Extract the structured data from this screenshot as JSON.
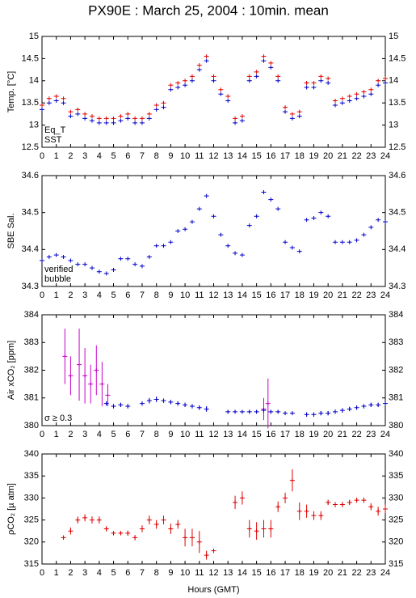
{
  "chart_data": [
    {
      "type": "scatter",
      "title": "PX90E : March 25, 2004 : 10min. mean",
      "y_label": "Temp. [°C]",
      "xlim": [
        0,
        24
      ],
      "xticks": [
        0,
        1,
        2,
        3,
        4,
        5,
        6,
        7,
        8,
        9,
        10,
        11,
        12,
        13,
        14,
        15,
        16,
        17,
        18,
        19,
        20,
        21,
        22,
        23,
        24
      ],
      "ylim": [
        12.5,
        15
      ],
      "yticks": [
        12.5,
        13,
        13.5,
        14,
        14.5,
        15
      ],
      "legend": "lower left",
      "series": [
        {
          "name": "Eq_T",
          "color": "#e00000",
          "x": [
            0,
            0.5,
            1,
            1.5,
            2,
            2.5,
            3,
            3.5,
            4,
            4.5,
            5,
            5.5,
            6,
            6.5,
            7,
            7.5,
            8,
            8.5,
            9,
            9.5,
            10,
            10.5,
            11,
            11.5,
            12,
            12.5,
            13,
            13.5,
            14,
            14.5,
            15,
            15.5,
            16,
            16.5,
            17,
            17.5,
            18,
            18.5,
            19,
            19.5,
            20,
            20.5,
            21,
            21.5,
            22,
            22.5,
            23,
            23.5,
            24
          ],
          "values": [
            13.45,
            13.6,
            13.65,
            13.6,
            13.3,
            13.35,
            13.25,
            13.2,
            13.15,
            13.15,
            13.15,
            13.2,
            13.25,
            13.15,
            13.15,
            13.25,
            13.45,
            13.5,
            13.9,
            13.95,
            14.0,
            14.1,
            14.35,
            14.55,
            14.1,
            13.8,
            13.65,
            13.15,
            13.2,
            14.1,
            14.2,
            14.55,
            14.4,
            14.1,
            13.4,
            13.25,
            13.3,
            13.95,
            13.95,
            14.1,
            14.05,
            13.55,
            13.6,
            13.65,
            13.7,
            13.75,
            13.8,
            14.0,
            14.05
          ]
        },
        {
          "name": "SST",
          "color": "#0000c8",
          "x": [
            0,
            0.5,
            1,
            1.5,
            2,
            2.5,
            3,
            3.5,
            4,
            4.5,
            5,
            5.5,
            6,
            6.5,
            7,
            7.5,
            8,
            8.5,
            9,
            9.5,
            10,
            10.5,
            11,
            11.5,
            12,
            12.5,
            13,
            13.5,
            14,
            14.5,
            15,
            15.5,
            16,
            16.5,
            17,
            17.5,
            18,
            18.5,
            19,
            19.5,
            20,
            20.5,
            21,
            21.5,
            22,
            22.5,
            23,
            23.5,
            24
          ],
          "values": [
            13.35,
            13.5,
            13.55,
            13.5,
            13.2,
            13.25,
            13.15,
            13.1,
            13.05,
            13.05,
            13.05,
            13.1,
            13.15,
            13.05,
            13.05,
            13.15,
            13.35,
            13.4,
            13.8,
            13.85,
            13.9,
            14.0,
            14.25,
            14.45,
            14.0,
            13.7,
            13.55,
            13.05,
            13.1,
            14.0,
            14.1,
            14.45,
            14.3,
            14.0,
            13.3,
            13.15,
            13.2,
            13.85,
            13.85,
            14.0,
            13.95,
            13.45,
            13.5,
            13.55,
            13.6,
            13.65,
            13.7,
            13.9,
            13.95
          ]
        }
      ]
    },
    {
      "type": "scatter",
      "y_label": "SBE Sal.",
      "xlim": [
        0,
        24
      ],
      "xticks": [
        0,
        1,
        2,
        3,
        4,
        5,
        6,
        7,
        8,
        9,
        10,
        11,
        12,
        13,
        14,
        15,
        16,
        17,
        18,
        19,
        20,
        21,
        22,
        23,
        24
      ],
      "ylim": [
        34.3,
        34.6
      ],
      "yticks": [
        34.3,
        34.4,
        34.5,
        34.6
      ],
      "legend": "lower left",
      "series": [
        {
          "name": "verified",
          "color": "#0000c8",
          "x": [
            0,
            0.5,
            1,
            1.5,
            2,
            2.5,
            3,
            3.5,
            4,
            4.5,
            5,
            5.5,
            6,
            6.5,
            7,
            7.5,
            8,
            8.5,
            9,
            9.5,
            10,
            10.5,
            11,
            11.5,
            12,
            12.5,
            13,
            13.5,
            14,
            14.5,
            15,
            15.5,
            16,
            16.5,
            17,
            17.5,
            18,
            18.5,
            19,
            19.5,
            20,
            20.5,
            21,
            21.5,
            22,
            22.5,
            23,
            23.5,
            24
          ],
          "values": [
            34.37,
            34.38,
            34.385,
            34.38,
            34.37,
            34.36,
            34.36,
            34.35,
            34.34,
            34.335,
            34.345,
            34.375,
            34.375,
            34.36,
            34.355,
            34.38,
            34.41,
            34.41,
            34.42,
            34.45,
            34.455,
            34.475,
            34.51,
            34.545,
            34.49,
            34.44,
            34.41,
            34.39,
            34.385,
            34.465,
            34.49,
            34.555,
            34.535,
            34.51,
            34.42,
            34.405,
            34.395,
            34.48,
            34.485,
            34.5,
            34.49,
            34.42,
            34.42,
            34.42,
            34.425,
            34.44,
            34.46,
            34.48,
            34.475
          ]
        },
        {
          "name": "bubble",
          "color": "#c800c8",
          "x": [],
          "values": []
        }
      ]
    },
    {
      "type": "scatter",
      "y_label": "Air xCO₂ [ppm]",
      "xlim": [
        0,
        24
      ],
      "xticks": [
        0,
        1,
        2,
        3,
        4,
        5,
        6,
        7,
        8,
        9,
        10,
        11,
        12,
        13,
        14,
        15,
        16,
        17,
        18,
        19,
        20,
        21,
        22,
        23,
        24
      ],
      "ylim": [
        380,
        384
      ],
      "yticks": [
        380,
        381,
        382,
        383,
        384
      ],
      "legend": "lower left",
      "series": [
        {
          "name": "σ ≥ 0.3",
          "color": "#c800c8",
          "x": [
            1.6,
            2,
            2.6,
            3,
            3.4,
            3.8,
            4.2,
            4.6,
            15.5,
            15.8
          ],
          "values": [
            382.5,
            381.8,
            382.2,
            381.8,
            381.5,
            382,
            381.5,
            381.1,
            380.6,
            380.8
          ],
          "errors": [
            1,
            0.7,
            1.3,
            1,
            0.7,
            0.9,
            0.8,
            0.4,
            0.4,
            0.9
          ]
        },
        {
          "color": "#0000c8",
          "x": [
            4.5,
            5,
            5.5,
            6,
            6.5,
            7,
            7.5,
            8,
            8.5,
            9,
            9.5,
            10,
            10.5,
            11,
            11.5,
            12,
            12.5,
            13,
            13.5,
            14,
            14.5,
            15,
            15.5,
            16,
            16.5,
            17,
            17.5,
            18,
            18.5,
            19,
            19.5,
            20,
            20.5,
            21,
            21.5,
            22,
            22.5,
            23,
            23.5,
            24
          ],
          "values": [
            380.8,
            380.7,
            380.75,
            380.7,
            null,
            380.8,
            380.9,
            380.95,
            380.9,
            380.85,
            380.8,
            380.75,
            380.7,
            380.65,
            380.6,
            null,
            null,
            380.5,
            380.5,
            380.5,
            380.5,
            380.5,
            380.55,
            380.5,
            380.5,
            380.45,
            380.45,
            null,
            380.4,
            380.4,
            380.45,
            380.45,
            380.5,
            380.55,
            380.6,
            380.65,
            380.7,
            380.75,
            380.75,
            380.8
          ],
          "errors": [
            0.08,
            0.08,
            0.08,
            0.08,
            null,
            0.08,
            0.1,
            0.1,
            0.08,
            0.08,
            0.08,
            0.08,
            0.08,
            0.08,
            0.1,
            null,
            null,
            0.05,
            0.05,
            0.05,
            0.05,
            0.05,
            0.08,
            0.05,
            0.05,
            0.05,
            0.05,
            null,
            0.08,
            0.08,
            0.08,
            0.08,
            0.08,
            0.08,
            0.08,
            0.08,
            0.08,
            0.08,
            0.08,
            0.08
          ]
        }
      ]
    },
    {
      "type": "scatter",
      "y_label": "ρCO₂ [µ atm]",
      "x_label": "Hours (GMT)",
      "xlim": [
        0,
        24
      ],
      "xticks": [
        0,
        1,
        2,
        3,
        4,
        5,
        6,
        7,
        8,
        9,
        10,
        11,
        12,
        13,
        14,
        15,
        16,
        17,
        18,
        19,
        20,
        21,
        22,
        23,
        24
      ],
      "ylim": [
        315,
        340
      ],
      "yticks": [
        315,
        320,
        325,
        330,
        335,
        340
      ],
      "series": [
        {
          "color": "#e00000",
          "x": [
            1.5,
            2,
            2.5,
            3,
            3.5,
            4,
            4.5,
            5,
            5.5,
            6,
            6.5,
            7,
            7.5,
            8,
            8.5,
            9,
            9.5,
            10,
            10.5,
            11,
            11.5,
            12,
            12.5,
            13,
            13.5,
            14,
            14.5,
            15,
            15.5,
            16,
            16.5,
            17,
            17.5,
            18,
            18.5,
            19,
            19.5,
            20,
            20.5,
            21,
            21.5,
            22,
            22.5,
            23,
            23.5,
            24
          ],
          "values": [
            321,
            322.5,
            325,
            325.5,
            325,
            325,
            323,
            322,
            322,
            322,
            321,
            323,
            325,
            324,
            325,
            323,
            324,
            321,
            321,
            320,
            317,
            318,
            null,
            null,
            329,
            330,
            323,
            322.5,
            323,
            323,
            328,
            330,
            334,
            327,
            327,
            326,
            326,
            329,
            328.5,
            328.5,
            329,
            329.5,
            329.5,
            328,
            327,
            327.5
          ],
          "errors": [
            0.5,
            0.8,
            0.8,
            0.8,
            0.8,
            0.8,
            0.6,
            0.5,
            0.5,
            0.6,
            0.6,
            0.8,
            1,
            1,
            1,
            1.2,
            1,
            2,
            2,
            2.5,
            1,
            0.5,
            null,
            null,
            1.5,
            1.5,
            2,
            2,
            2,
            2,
            1.2,
            1.2,
            2.5,
            2,
            1.5,
            1,
            1,
            0.6,
            0.6,
            0.6,
            0.6,
            0.6,
            0.6,
            0.8,
            1,
            1
          ]
        }
      ]
    }
  ]
}
